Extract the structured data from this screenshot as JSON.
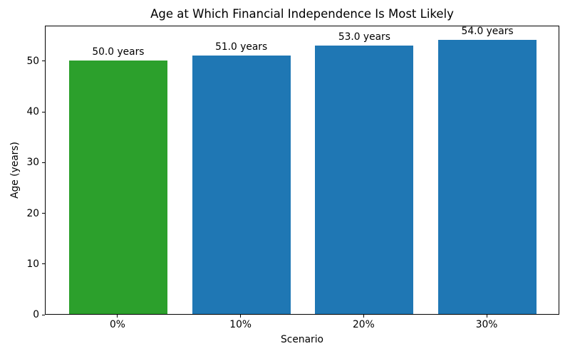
{
  "chart_data": {
    "type": "bar",
    "title": "Age at Which Financial Independence Is Most Likely",
    "xlabel": "Scenario",
    "ylabel": "Age (years)",
    "categories": [
      "0%",
      "10%",
      "20%",
      "30%"
    ],
    "values": [
      50.0,
      51.0,
      53.0,
      54.0
    ],
    "bar_labels": [
      "50.0 years",
      "51.0 years",
      "53.0 years",
      "54.0 years"
    ],
    "bar_colors": [
      "#2ca02c",
      "#1f77b4",
      "#1f77b4",
      "#1f77b4"
    ],
    "yticks": [
      0,
      10,
      20,
      30,
      40,
      50
    ],
    "ylim": [
      0,
      57
    ],
    "grid": false,
    "legend_position": "none",
    "bar_width_fraction": 0.8
  }
}
